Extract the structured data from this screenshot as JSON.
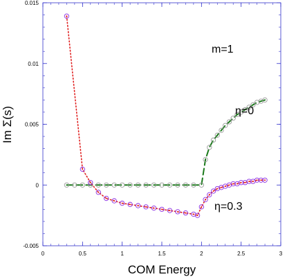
{
  "chart_data": {
    "type": "scatter",
    "xlabel": "COM Energy",
    "ylabel": "Im Σ(s)",
    "xlim": [
      0,
      3
    ],
    "ylim": [
      -0.005,
      0.015
    ],
    "x_ticks": [
      "0",
      "0.5",
      "1",
      "1.5",
      "2",
      "2.5",
      "3"
    ],
    "y_ticks": [
      "-0.005",
      "0",
      "0.005",
      "0.01",
      "0.015"
    ],
    "grid": false,
    "annotations": [
      {
        "text": "m=1"
      },
      {
        "text": "η=0"
      },
      {
        "text": "η=0.3"
      }
    ],
    "series": [
      {
        "line_color": "#1a7a1a",
        "line_style": "dashed",
        "marker": "open-circle",
        "marker_color": "#9a9a9a",
        "x": [
          0.3,
          0.4,
          0.5,
          0.6,
          0.7,
          0.8,
          0.9,
          1.0,
          1.1,
          1.2,
          1.3,
          1.4,
          1.5,
          1.6,
          1.7,
          1.8,
          1.9,
          2.0,
          2.05,
          2.1,
          2.15,
          2.2,
          2.25,
          2.3,
          2.35,
          2.4,
          2.45,
          2.5,
          2.55,
          2.6,
          2.65,
          2.7,
          2.75,
          2.8
        ],
        "y": [
          0,
          0,
          0,
          0,
          0,
          0,
          0,
          0,
          0,
          0,
          0,
          0,
          0,
          0,
          0,
          0,
          0,
          0,
          0.0021,
          0.0031,
          0.0037,
          0.0041,
          0.0045,
          0.0049,
          0.0052,
          0.0055,
          0.0058,
          0.006,
          0.0062,
          0.0064,
          0.0066,
          0.0068,
          0.0069,
          0.007
        ]
      },
      {
        "line_color": "#e02020",
        "line_style": "dotted",
        "marker": "open-circle",
        "marker_color": "#8a2be2",
        "x": [
          0.3,
          0.5,
          0.6,
          0.7,
          0.8,
          0.9,
          1.0,
          1.1,
          1.2,
          1.3,
          1.4,
          1.5,
          1.6,
          1.7,
          1.8,
          1.9,
          1.95,
          2.0,
          2.05,
          2.1,
          2.15,
          2.2,
          2.25,
          2.3,
          2.35,
          2.4,
          2.45,
          2.5,
          2.55,
          2.6,
          2.65,
          2.7,
          2.75,
          2.8
        ],
        "y": [
          0.0139,
          0.0013,
          0.0002,
          -0.0006,
          -0.0011,
          -0.0013,
          -0.0015,
          -0.0016,
          -0.0017,
          -0.0018,
          -0.0019,
          -0.002,
          -0.0021,
          -0.0022,
          -0.0023,
          -0.0024,
          -0.0025,
          -0.0018,
          -0.0012,
          -0.0008,
          -0.0005,
          -0.0003,
          -0.0002,
          -0.0001,
          0,
          0.0001,
          0.0001,
          0.0002,
          0.0002,
          0.0003,
          0.0003,
          0.0004,
          0.0004,
          0.0004
        ]
      }
    ]
  }
}
